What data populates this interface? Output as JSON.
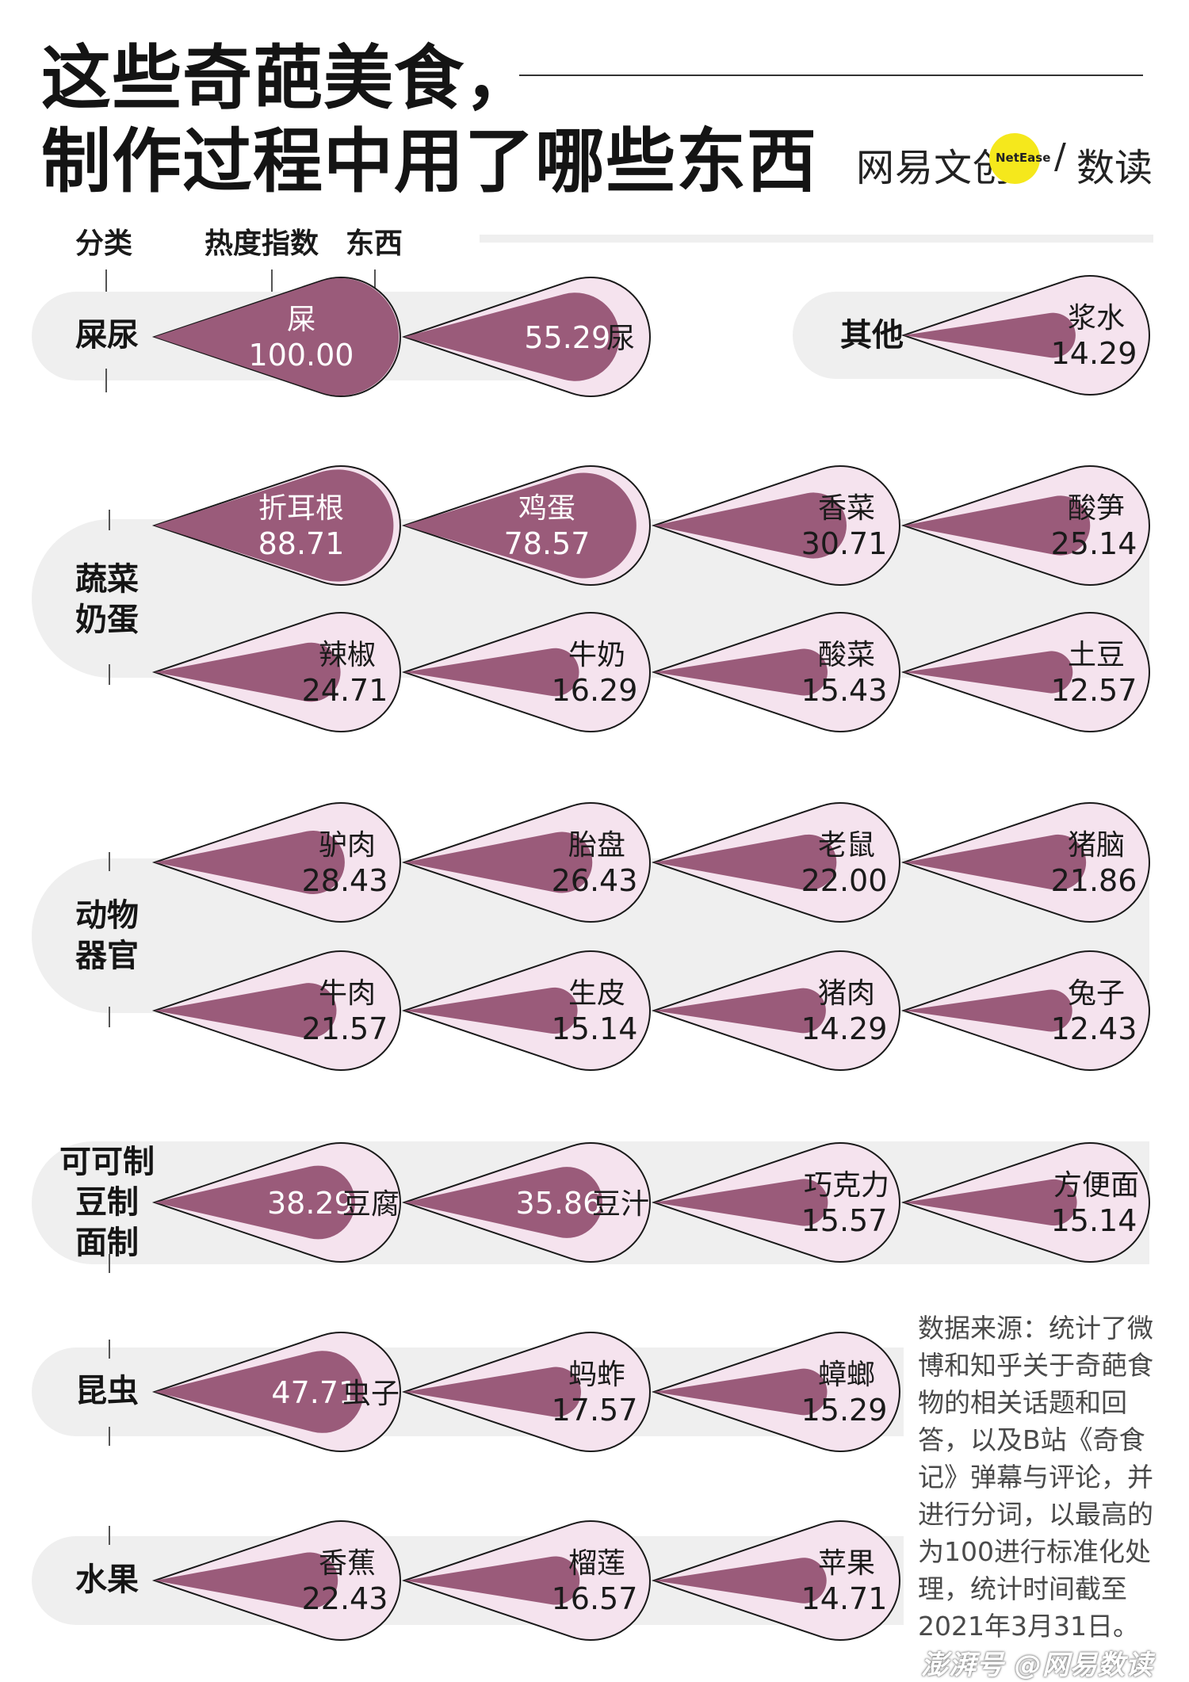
{
  "title": {
    "line1": "这些奇葩美食，",
    "line2": "制作过程中用了哪些东西"
  },
  "brand": {
    "left": "网易文创",
    "badge": "NetEase",
    "slash": "/",
    "right": "数读",
    "badge_color": "#f5e81c"
  },
  "legend": {
    "category": "分类",
    "index": "热度指数",
    "item": "东西"
  },
  "colors": {
    "inner_fill": "#9a5b7a",
    "outer_fill": "#f5e3ee",
    "band": "#efefef"
  },
  "chart_data": {
    "type": "bubble",
    "max_value": 100,
    "categories": [
      {
        "name": "屎尿",
        "items": [
          {
            "label": "屎",
            "value": 100.0
          },
          {
            "label": "尿",
            "value": 55.29
          }
        ]
      },
      {
        "name": "其他",
        "items": [
          {
            "label": "浆水",
            "value": 14.29
          }
        ]
      },
      {
        "name": "蔬菜奶蛋",
        "items": [
          {
            "label": "折耳根",
            "value": 88.71
          },
          {
            "label": "鸡蛋",
            "value": 78.57
          },
          {
            "label": "香菜",
            "value": 30.71
          },
          {
            "label": "酸笋",
            "value": 25.14
          },
          {
            "label": "辣椒",
            "value": 24.71
          },
          {
            "label": "牛奶",
            "value": 16.29
          },
          {
            "label": "酸菜",
            "value": 15.43
          },
          {
            "label": "土豆",
            "value": 12.57
          }
        ]
      },
      {
        "name": "动物器官",
        "items": [
          {
            "label": "驴肉",
            "value": 28.43
          },
          {
            "label": "胎盘",
            "value": 26.43
          },
          {
            "label": "老鼠",
            "value": 22.0
          },
          {
            "label": "猪脑",
            "value": 21.86
          },
          {
            "label": "牛肉",
            "value": 21.57
          },
          {
            "label": "生皮",
            "value": 15.14
          },
          {
            "label": "猪肉",
            "value": 14.29
          },
          {
            "label": "兔子",
            "value": 12.43
          }
        ]
      },
      {
        "name": "可可制豆制面制",
        "items": [
          {
            "label": "豆腐",
            "value": 38.29
          },
          {
            "label": "豆汁",
            "value": 35.86
          },
          {
            "label": "巧克力",
            "value": 15.57
          },
          {
            "label": "方便面",
            "value": 15.14
          }
        ]
      },
      {
        "name": "昆虫",
        "items": [
          {
            "label": "虫子",
            "value": 47.71
          },
          {
            "label": "蚂蚱",
            "value": 17.57
          },
          {
            "label": "蟑螂",
            "value": 15.29
          }
        ]
      },
      {
        "name": "水果",
        "items": [
          {
            "label": "香蕉",
            "value": 22.43
          },
          {
            "label": "榴莲",
            "value": 16.57
          },
          {
            "label": "苹果",
            "value": 14.71
          }
        ]
      }
    ]
  },
  "category_labels": {
    "shiniao": "屎尿",
    "other": "其他",
    "veg_1": "蔬菜",
    "veg_2": "奶蛋",
    "animal_1": "动物",
    "animal_2": "器官",
    "made_1": "可可制",
    "made_2": "豆制",
    "made_3": "面制",
    "insect": "昆虫",
    "fruit": "水果"
  },
  "source": "数据来源：统计了微博和知乎关于奇葩食物的相关话题和回答，以及B站《奇食记》弹幕与评论，并进行分词，以最高的为100进行标准化处理，统计时间截至2021年3月31日。",
  "watermark": "澎湃号 @网易数读"
}
